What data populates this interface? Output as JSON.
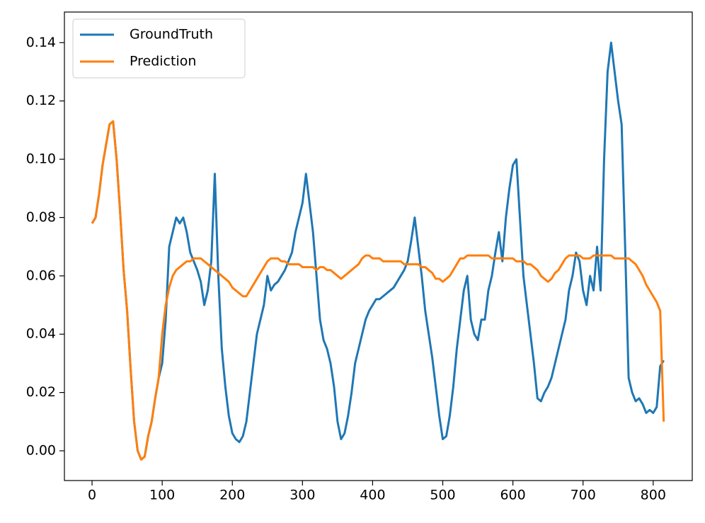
{
  "chart_data": {
    "type": "line",
    "x": [
      0,
      5,
      10,
      15,
      20,
      25,
      30,
      35,
      40,
      45,
      50,
      55,
      60,
      65,
      70,
      75,
      80,
      85,
      90,
      95,
      100,
      105,
      110,
      115,
      120,
      125,
      130,
      135,
      140,
      145,
      150,
      155,
      160,
      165,
      170,
      175,
      180,
      185,
      190,
      195,
      200,
      205,
      210,
      215,
      220,
      225,
      230,
      235,
      240,
      245,
      250,
      255,
      260,
      265,
      270,
      275,
      280,
      285,
      290,
      295,
      300,
      305,
      310,
      315,
      320,
      325,
      330,
      335,
      340,
      345,
      350,
      355,
      360,
      365,
      370,
      375,
      380,
      385,
      390,
      395,
      400,
      405,
      410,
      415,
      420,
      425,
      430,
      435,
      440,
      445,
      450,
      455,
      460,
      465,
      470,
      475,
      480,
      485,
      490,
      495,
      500,
      505,
      510,
      515,
      520,
      525,
      530,
      535,
      540,
      545,
      550,
      555,
      560,
      565,
      570,
      575,
      580,
      585,
      590,
      595,
      600,
      605,
      610,
      615,
      620,
      625,
      630,
      635,
      640,
      645,
      650,
      655,
      660,
      665,
      670,
      675,
      680,
      685,
      690,
      695,
      700,
      705,
      710,
      715,
      720,
      725,
      730,
      735,
      740,
      745,
      750,
      755,
      760,
      765,
      770,
      775,
      780,
      785,
      790,
      795,
      800,
      805,
      810,
      815
    ],
    "series": [
      {
        "name": "GroundTruth",
        "color": "#1f77b4",
        "values": [
          0.078,
          0.08,
          0.088,
          0.098,
          0.105,
          0.112,
          0.113,
          0.1,
          0.082,
          0.062,
          0.048,
          0.028,
          0.01,
          0.0,
          -0.003,
          -0.002,
          0.005,
          0.01,
          0.018,
          0.025,
          0.03,
          0.045,
          0.07,
          0.075,
          0.08,
          0.078,
          0.08,
          0.075,
          0.068,
          0.065,
          0.062,
          0.058,
          0.05,
          0.055,
          0.065,
          0.095,
          0.06,
          0.035,
          0.022,
          0.012,
          0.006,
          0.004,
          0.003,
          0.005,
          0.01,
          0.02,
          0.03,
          0.04,
          0.045,
          0.05,
          0.06,
          0.055,
          0.057,
          0.058,
          0.06,
          0.062,
          0.065,
          0.068,
          0.075,
          0.08,
          0.085,
          0.095,
          0.085,
          0.075,
          0.06,
          0.045,
          0.038,
          0.035,
          0.03,
          0.022,
          0.01,
          0.004,
          0.006,
          0.012,
          0.02,
          0.03,
          0.035,
          0.04,
          0.045,
          0.048,
          0.05,
          0.052,
          0.052,
          0.053,
          0.054,
          0.055,
          0.056,
          0.058,
          0.06,
          0.062,
          0.065,
          0.072,
          0.08,
          0.07,
          0.06,
          0.048,
          0.04,
          0.032,
          0.022,
          0.012,
          0.004,
          0.005,
          0.012,
          0.022,
          0.035,
          0.045,
          0.055,
          0.06,
          0.045,
          0.04,
          0.038,
          0.045,
          0.045,
          0.055,
          0.06,
          0.068,
          0.075,
          0.065,
          0.08,
          0.09,
          0.098,
          0.1,
          0.08,
          0.06,
          0.05,
          0.04,
          0.03,
          0.018,
          0.017,
          0.02,
          0.022,
          0.025,
          0.03,
          0.035,
          0.04,
          0.045,
          0.055,
          0.06,
          0.068,
          0.065,
          0.055,
          0.05,
          0.06,
          0.055,
          0.07,
          0.055,
          0.1,
          0.13,
          0.14,
          0.13,
          0.12,
          0.112,
          0.07,
          0.025,
          0.02,
          0.017,
          0.018,
          0.016,
          0.013,
          0.014,
          0.013,
          0.015,
          0.029,
          0.031
        ]
      },
      {
        "name": "Prediction",
        "color": "#ff7f0e",
        "values": [
          0.078,
          0.08,
          0.088,
          0.098,
          0.105,
          0.112,
          0.113,
          0.1,
          0.082,
          0.062,
          0.048,
          0.028,
          0.01,
          0.0,
          -0.003,
          -0.002,
          0.005,
          0.01,
          0.018,
          0.025,
          0.04,
          0.05,
          0.056,
          0.06,
          0.062,
          0.063,
          0.064,
          0.065,
          0.065,
          0.066,
          0.066,
          0.066,
          0.065,
          0.064,
          0.063,
          0.062,
          0.061,
          0.06,
          0.059,
          0.058,
          0.056,
          0.055,
          0.054,
          0.053,
          0.053,
          0.055,
          0.057,
          0.059,
          0.061,
          0.063,
          0.065,
          0.066,
          0.066,
          0.066,
          0.065,
          0.065,
          0.064,
          0.064,
          0.064,
          0.064,
          0.063,
          0.063,
          0.063,
          0.063,
          0.062,
          0.063,
          0.063,
          0.062,
          0.062,
          0.061,
          0.06,
          0.059,
          0.06,
          0.061,
          0.062,
          0.063,
          0.064,
          0.066,
          0.067,
          0.067,
          0.066,
          0.066,
          0.066,
          0.065,
          0.065,
          0.065,
          0.065,
          0.065,
          0.065,
          0.064,
          0.064,
          0.064,
          0.064,
          0.064,
          0.063,
          0.063,
          0.062,
          0.061,
          0.059,
          0.059,
          0.058,
          0.059,
          0.06,
          0.062,
          0.064,
          0.066,
          0.066,
          0.067,
          0.067,
          0.067,
          0.067,
          0.067,
          0.067,
          0.067,
          0.066,
          0.066,
          0.066,
          0.066,
          0.066,
          0.066,
          0.066,
          0.065,
          0.065,
          0.065,
          0.064,
          0.064,
          0.063,
          0.062,
          0.06,
          0.059,
          0.058,
          0.059,
          0.061,
          0.062,
          0.064,
          0.066,
          0.067,
          0.067,
          0.067,
          0.067,
          0.066,
          0.066,
          0.066,
          0.067,
          0.067,
          0.067,
          0.067,
          0.067,
          0.067,
          0.066,
          0.066,
          0.066,
          0.066,
          0.066,
          0.065,
          0.064,
          0.062,
          0.06,
          0.057,
          0.055,
          0.053,
          0.051,
          0.048,
          0.01
        ]
      }
    ],
    "xlim": [
      -39.4,
      855.7
    ],
    "ylim": [
      -0.0102,
      0.1505
    ],
    "xticks": [
      0,
      100,
      200,
      300,
      400,
      500,
      600,
      700,
      800
    ],
    "yticks": [
      {
        "value": 0,
        "label": "0.00"
      },
      {
        "value": 0.02,
        "label": "0.02"
      },
      {
        "value": 0.04,
        "label": "0.04"
      },
      {
        "value": 0.06,
        "label": "0.06"
      },
      {
        "value": 0.08,
        "label": "0.08"
      },
      {
        "value": 0.1,
        "label": "0.10"
      },
      {
        "value": 0.12,
        "label": "0.12"
      },
      {
        "value": 0.14,
        "label": "0.14"
      }
    ],
    "legend": "upper left"
  }
}
